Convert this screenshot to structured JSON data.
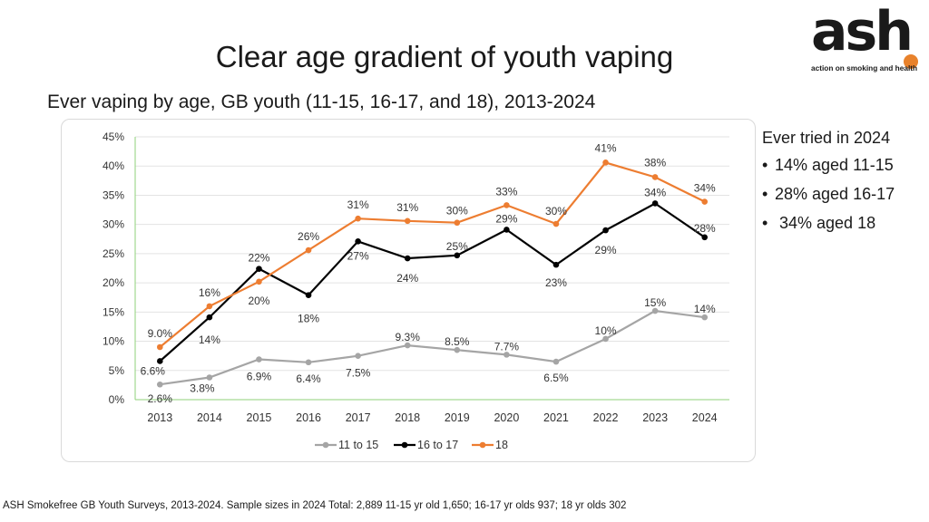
{
  "slide": {
    "title": "Clear age gradient of youth vaping",
    "subtitle": "Ever vaping by age, GB youth (11-15, 16-17, and 18), 2013-2024",
    "footer": "ASH Smokefree GB Youth Surveys, 2013-2024. Sample sizes in 2024 Total: 2,889 11-15 yr old 1,650; 16-17 yr olds 937; 18 yr olds 302"
  },
  "logo": {
    "word": "ash",
    "tagline": "action on smoking and health",
    "dot_color": "#E8822C"
  },
  "sidebar": {
    "title": "Ever tried in 2024",
    "items": [
      "14% aged 11-15",
      "28% aged 16-17",
      " 34% aged 18"
    ]
  },
  "chart_data": {
    "type": "line",
    "x": [
      "2013",
      "2014",
      "2015",
      "2016",
      "2017",
      "2018",
      "2019",
      "2020",
      "2021",
      "2022",
      "2023",
      "2024"
    ],
    "ylim": [
      0,
      45
    ],
    "yticks": [
      "0%",
      "5%",
      "10%",
      "15%",
      "20%",
      "25%",
      "30%",
      "35%",
      "40%",
      "45%"
    ],
    "grid": true,
    "legend_position": "bottom",
    "series": [
      {
        "name": "11 to 15",
        "color": "#A5A5A5",
        "values": [
          2.6,
          3.8,
          6.9,
          6.4,
          7.5,
          9.3,
          8.5,
          7.7,
          6.5,
          10.4,
          15.2,
          14.1
        ],
        "labels": [
          "2.6%",
          "3.8%",
          "6.9%",
          "6.4%",
          "7.5%",
          "9.3%",
          "8.5%",
          "7.7%",
          "6.5%",
          "10%",
          "15%",
          "14%"
        ]
      },
      {
        "name": "16 to 17",
        "color": "#000000",
        "values": [
          6.6,
          14.1,
          22.4,
          17.9,
          27.1,
          24.2,
          24.7,
          29.1,
          23.1,
          29.0,
          33.6,
          27.8
        ],
        "labels": [
          "6.6%",
          "14%",
          "22%",
          "18%",
          "27%",
          "24%",
          "25%",
          "29%",
          "23%",
          "29%",
          "34%",
          "28%"
        ]
      },
      {
        "name": "18",
        "color": "#ED7D31",
        "values": [
          9.0,
          16.0,
          20.2,
          25.6,
          31.0,
          30.6,
          30.3,
          33.3,
          30.1,
          40.6,
          38.1,
          33.9
        ],
        "labels": [
          "9.0%",
          "16%",
          "20%",
          "26%",
          "31%",
          "31%",
          "30%",
          "33%",
          "30%",
          "41%",
          "38%",
          "34%"
        ]
      }
    ]
  }
}
